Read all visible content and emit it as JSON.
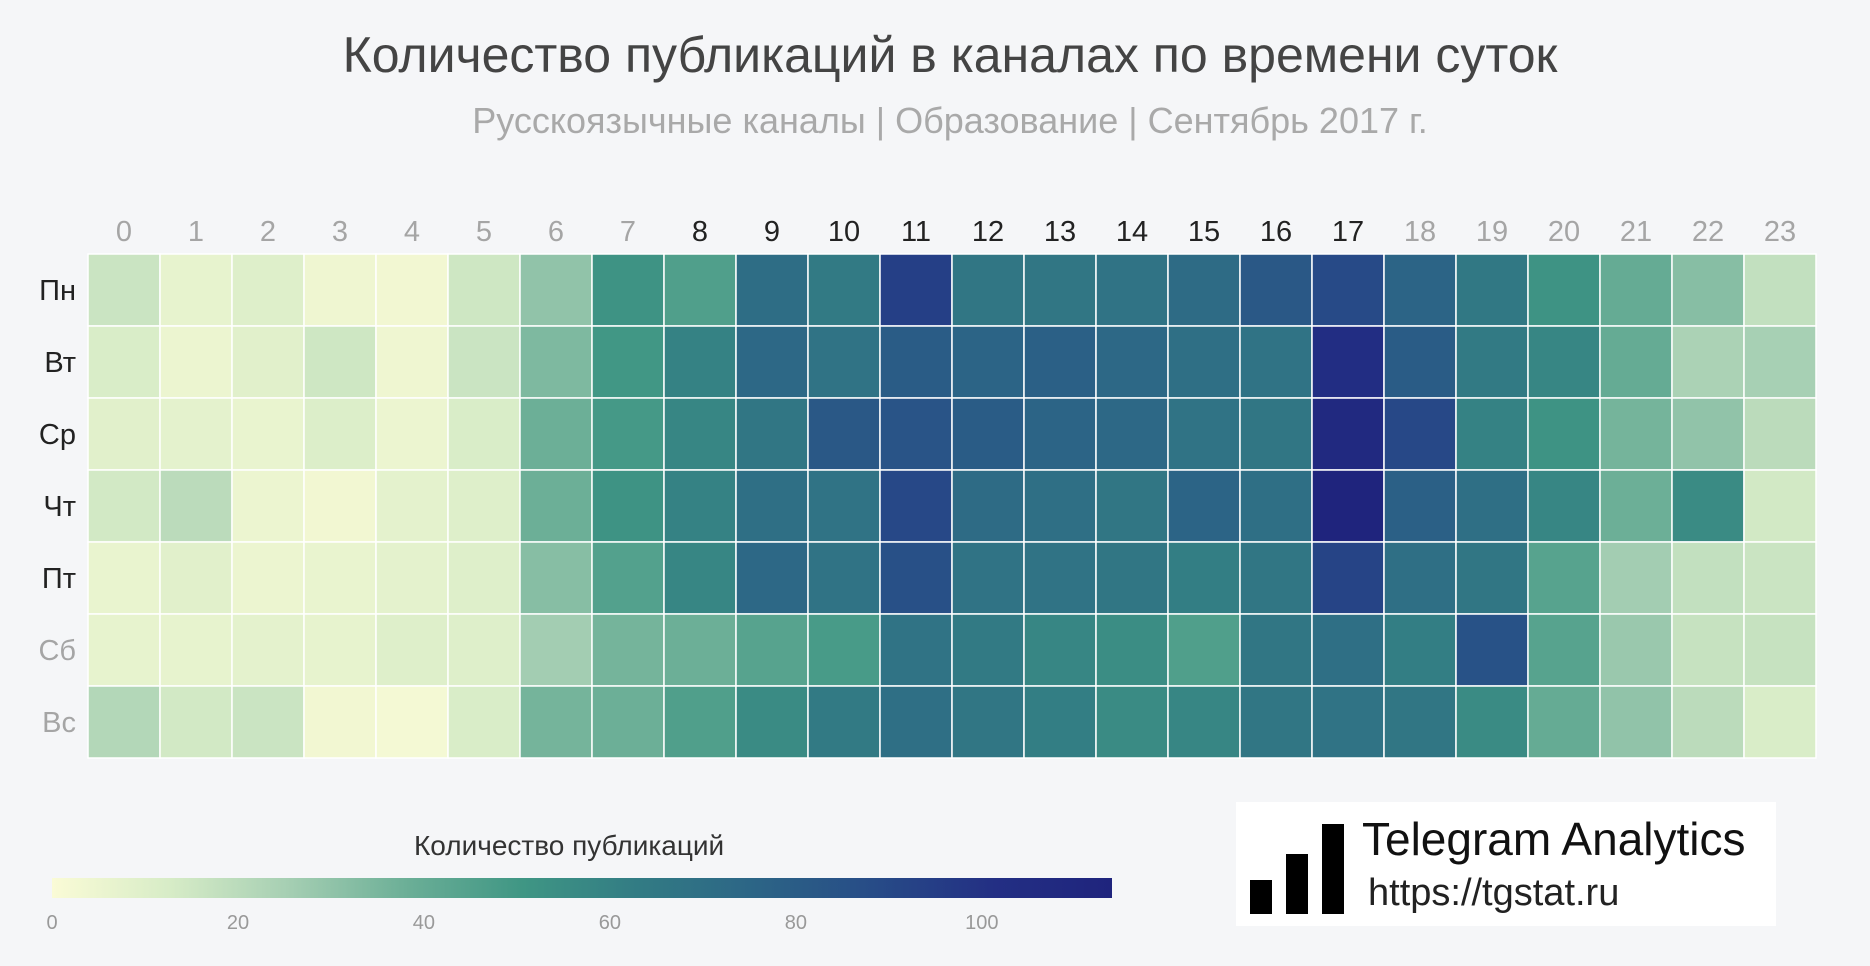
{
  "chart_data": {
    "type": "heatmap",
    "title": "Количество публикаций в каналах по времени суток",
    "subtitle": "Русскоязычные каналы | Образование | Сентябрь 2017 г.",
    "x": [
      "0",
      "1",
      "2",
      "3",
      "4",
      "5",
      "6",
      "7",
      "8",
      "9",
      "10",
      "11",
      "12",
      "13",
      "14",
      "15",
      "16",
      "17",
      "18",
      "19",
      "20",
      "21",
      "22",
      "23"
    ],
    "y": [
      "Пн",
      "Вт",
      "Ср",
      "Чт",
      "Пт",
      "Сб",
      "Вс"
    ],
    "x_highlighted": [
      "8",
      "9",
      "10",
      "11",
      "12",
      "13",
      "14",
      "15",
      "16",
      "17"
    ],
    "y_highlighted": [
      "Пн",
      "Вт",
      "Ср",
      "Чт",
      "Пт"
    ],
    "values": [
      [
        16,
        7,
        10,
        4,
        3,
        15,
        30,
        52,
        46,
        71,
        64,
        94,
        66,
        66,
        68,
        72,
        82,
        89,
        76,
        65,
        52,
        40,
        32,
        18
      ],
      [
        12,
        5,
        9,
        15,
        4,
        16,
        34,
        50,
        60,
        74,
        68,
        80,
        76,
        78,
        74,
        70,
        68,
        104,
        80,
        64,
        58,
        40,
        24,
        25
      ],
      [
        9,
        8,
        6,
        11,
        5,
        12,
        38,
        49,
        58,
        66,
        82,
        84,
        80,
        76,
        74,
        68,
        66,
        108,
        90,
        60,
        52,
        36,
        30,
        20
      ],
      [
        14,
        20,
        5,
        3,
        8,
        10,
        38,
        52,
        60,
        70,
        68,
        90,
        72,
        70,
        66,
        76,
        70,
        114,
        78,
        70,
        58,
        38,
        56,
        14
      ],
      [
        6,
        9,
        5,
        6,
        8,
        10,
        32,
        45,
        58,
        74,
        68,
        86,
        68,
        68,
        66,
        62,
        66,
        92,
        70,
        66,
        44,
        26,
        18,
        16
      ],
      [
        7,
        7,
        8,
        7,
        10,
        10,
        26,
        36,
        38,
        44,
        48,
        68,
        64,
        58,
        55,
        46,
        66,
        70,
        62,
        85,
        44,
        28,
        17,
        17
      ],
      [
        22,
        14,
        16,
        3,
        2,
        12,
        36,
        38,
        46,
        56,
        64,
        70,
        66,
        62,
        56,
        58,
        66,
        68,
        66,
        56,
        40,
        30,
        20,
        12
      ]
    ],
    "colorscale": [
      "#fafbd6",
      "#d7ecc7",
      "#a6cfb3",
      "#6caf97",
      "#3f9684",
      "#327b84",
      "#2c6486",
      "#274b87",
      "#232f84",
      "#1f247d"
    ],
    "zlim": [
      0,
      114
    ],
    "colorbar": {
      "title": "Количество публикаций",
      "ticks": [
        "0",
        "20",
        "40",
        "60",
        "80",
        "100"
      ]
    },
    "axis_label_colors": {
      "highlighted": "#222222",
      "normal": "#a5a5a5"
    }
  },
  "logo": {
    "name": "Telegram Analytics",
    "url": "https://tgstat.ru"
  }
}
